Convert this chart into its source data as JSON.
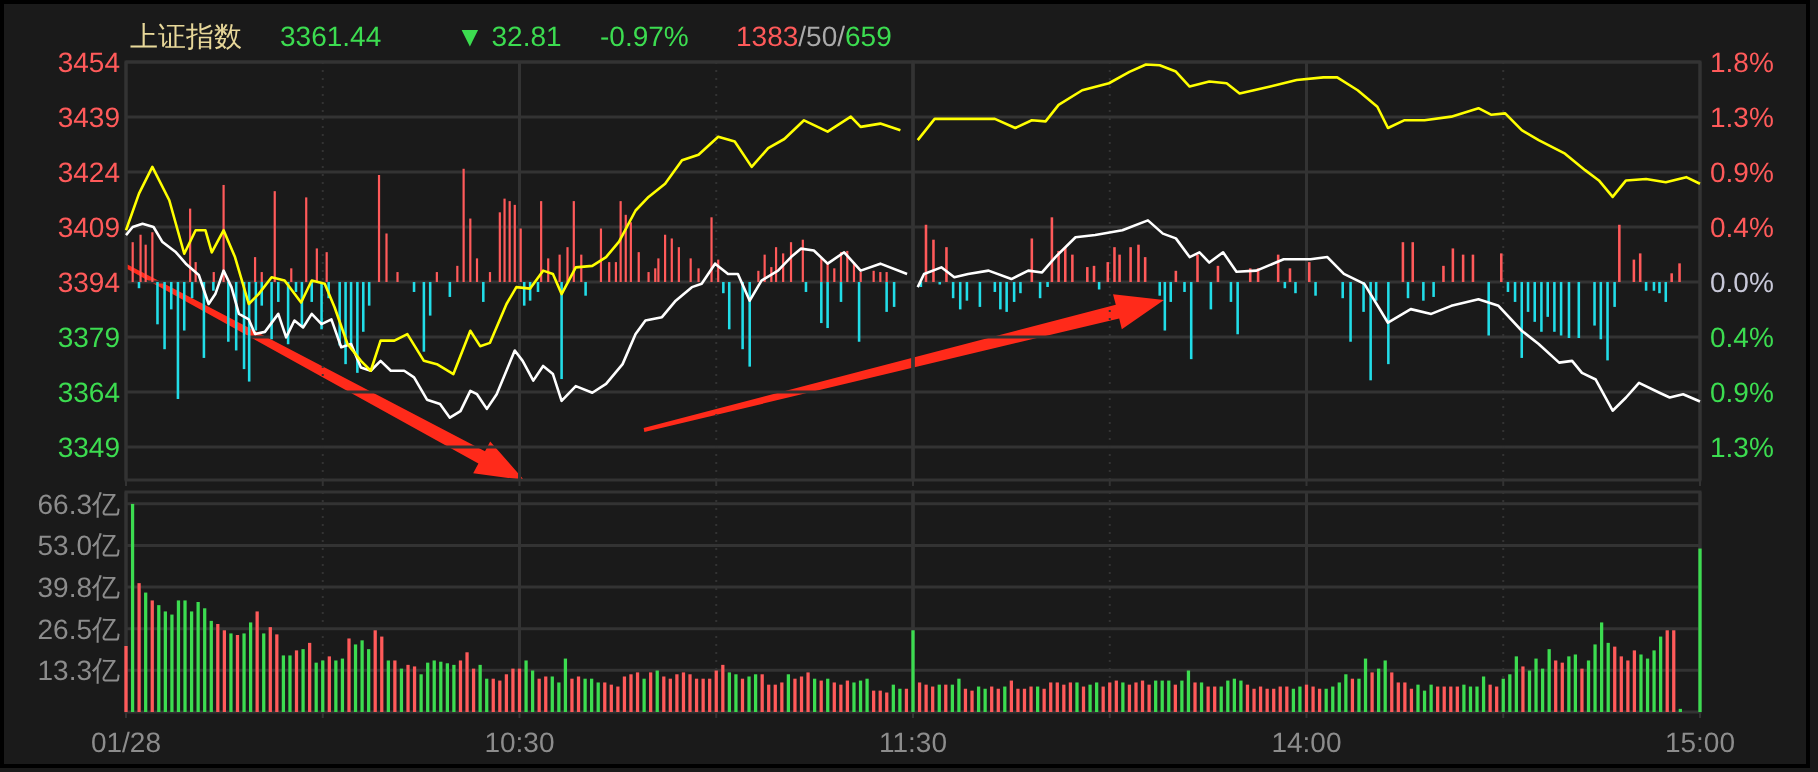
{
  "chart_data": [
    {
      "type": "line",
      "title": "上证指数",
      "annotations": [
        "3361.44",
        "▼ 32.81",
        "-0.97%",
        "1383/50/659"
      ],
      "xlim": [
        9.5,
        11.5
      ],
      "xticks": [
        9.5,
        {
          "value": 10,
          "label": null
        },
        10.5,
        {
          "value": 11,
          "label": null
        },
        11.5
      ],
      "ylim": [
        3340,
        3454
      ],
      "yticks": [
        3454,
        3439,
        3424,
        3409,
        3394,
        3379,
        3364,
        3349
      ],
      "y2lim": [
        -1.591,
        1.768
      ],
      "tick_labels": "y",
      "grid": true,
      "line_style": "solid",
      "series": [
        {
          "type": "bar",
          "axis": "y2",
          "color": "#ff5a5a",
          "x": [
            9.517,
            9.537,
            9.55,
            9.567,
            9.663,
            9.677,
            9.723,
            9.748,
            9.828,
            9.845,
            9.878,
            9.92,
            9.958,
            9.985,
            10.01,
            10.143,
            10.162,
            10.19,
            10.29,
            10.342,
            10.358,
            10.375,
            10.392,
            10.425,
            10.45,
            10.462,
            10.475,
            10.488,
            10.503,
            10.555,
            10.573,
            10.602,
            10.622,
            10.638,
            10.657,
            10.707,
            10.728,
            10.745,
            10.757,
            10.77,
            10.783,
            10.803,
            10.828,
            10.845,
            10.853,
            10.87,
            10.887,
            10.905,
            10.935,
            10.955,
            10.988,
            11.005,
            11.107,
            11.123,
            11.14,
            11.152,
            11.17,
            11.19,
            11.22,
            11.267,
            11.283,
            11.3,
            11.317,
            11.333,
            11.35,
            11.367,
            11.4,
            11.417,
            11.433
          ],
          "values": [
            0.32,
            0.38,
            0.3,
            0.4,
            0.59,
            0.16,
            0.08,
            0.78,
            0.2,
            0.08,
            0.73,
            0.11,
            0.68,
            0.27,
            0.24,
            0.86,
            0.39,
            0.08,
            0.08,
            0.13,
            0.91,
            0.51,
            0.19,
            0.08,
            0.56,
            0.67,
            0.65,
            0.62,
            0.43,
            0.65,
            0.19,
            0.22,
            0.28,
            0.65,
            0.22,
            0.43,
            0.16,
            0.16,
            0.65,
            0.54,
            0.48,
            0.24,
            0.08,
            0.11,
            0.19,
            0.38,
            0.35,
            0.28,
            0.19,
            0.11,
            0.52,
            0.18,
            0.09,
            0.22,
            0.12,
            0.28,
            0.23,
            0.32,
            0.34,
            0.19,
            0.16,
            0.11,
            0.24,
            0.25,
            0.16,
            0.08,
            0.09,
            0.08,
            0.08
          ]
        },
        {
          "type": "bar",
          "axis": "y2",
          "color": "#22dde8",
          "x": [
            9.533,
            9.58,
            9.598,
            9.615,
            9.632,
            9.648,
            9.668,
            9.698,
            9.722,
            9.76,
            9.78,
            9.8,
            9.813,
            9.83,
            9.845,
            9.87,
            9.887,
            9.912,
            9.932,
            9.947,
            9.972,
            9.997,
            10.015,
            10.043,
            10.058,
            10.072,
            10.088,
            10.103,
            10.118,
            10.232,
            10.257,
            10.273,
            10.323,
            10.408,
            10.512,
            10.527,
            10.547,
            10.607,
            10.668,
            11.018,
            11.033,
            11.067,
            11.085,
            11.228,
            11.267,
            11.283,
            11.317,
            11.363,
            11.433,
            11.452
          ],
          "values": [
            -0.05,
            -0.34,
            -0.54,
            -0.22,
            -0.94,
            -0.39,
            -0.13,
            -0.61,
            -0.07,
            -0.48,
            -0.55,
            -0.7,
            -0.8,
            -0.39,
            -0.19,
            -0.46,
            -0.16,
            -0.5,
            -0.08,
            -0.35,
            -0.16,
            -0.38,
            -0.13,
            -0.51,
            -0.66,
            -0.51,
            -0.73,
            -0.4,
            -0.19,
            -0.08,
            -0.56,
            -0.27,
            -0.12,
            -0.16,
            -0.19,
            -0.15,
            -0.08,
            -0.78,
            -0.11,
            -0.09,
            -0.38,
            -0.54,
            -0.68,
            -0.08,
            -0.33,
            -0.37,
            -0.16,
            -0.48,
            -0.24,
            -0.2
          ]
        },
        {
          "color": "#ffffff",
          "x": [
            9.5,
            9.517,
            9.542,
            9.57,
            9.592,
            9.627,
            9.652,
            9.685,
            9.71,
            9.727,
            9.748,
            9.768,
            9.787,
            9.812,
            9.828,
            9.853,
            9.887,
            9.907,
            9.928,
            9.95,
            9.972,
            9.997,
            10.022,
            10.047,
            10.072,
            10.097,
            10.122,
            10.147,
            10.173,
            10.207,
            10.232,
            10.265,
            10.298,
            10.323,
            10.35,
            10.375,
            10.392,
            10.417,
            10.442,
            10.488,
            10.508,
            10.535,
            10.56,
            10.585,
            10.607,
            10.643,
            10.685,
            10.72,
            10.762,
            10.795,
            10.82,
            10.862,
            10.897,
            10.938,
            10.963,
            10.997,
            11.03,
            11.055,
            11.085,
            11.115,
            11.157,
            11.19,
            11.215,
            11.248,
            11.283,
            11.325,
            11.367,
            11.417,
            11.485
          ],
          "values": [
            3406.8,
            3409.0,
            3409.9,
            3409.0,
            3405.0,
            3402.1,
            3399.0,
            3395.9,
            3388.0,
            3390.7,
            3397.1,
            3392.6,
            3385.3,
            3383.8,
            3379.8,
            3380.4,
            3385.3,
            3378.9,
            3383.5,
            3381.6,
            3385.3,
            3382.5,
            3383.8,
            3376.2,
            3377.1,
            3370.7,
            3369.8,
            3372.5,
            3369.8,
            3369.8,
            3368.0,
            3361.9,
            3360.7,
            3357.0,
            3358.8,
            3364.3,
            3363.4,
            3359.4,
            3363.4,
            3375.3,
            3372.5,
            3367.1,
            3371.1,
            3368.9,
            3361.6,
            3365.6,
            3363.8,
            3366.2,
            3371.6,
            3379.8,
            3383.5,
            3384.4,
            3388.9,
            3392.6,
            3393.5,
            3399.0,
            3396.2,
            3396.2,
            3388.9,
            3394.4,
            3397.1,
            3400.8,
            3403.1,
            3402.6,
            3399.0,
            3402.1,
            3397.1,
            3399.0,
            3396.2
          ]
        },
        {
          "color": "#ffff00",
          "x": [
            9.5,
            9.533,
            9.567,
            9.61,
            9.648,
            9.677,
            9.702,
            9.718,
            9.748,
            9.777,
            9.812,
            9.837,
            9.87,
            9.903,
            9.945,
            9.972,
            10.005,
            10.03,
            10.063,
            10.097,
            10.122,
            10.147,
            10.182,
            10.215,
            10.257,
            10.29,
            10.332,
            10.375,
            10.4,
            10.425,
            10.467,
            10.492,
            10.527,
            10.56,
            10.585,
            10.607,
            10.643,
            10.685,
            10.72,
            10.753,
            10.795,
            10.828,
            10.87,
            10.913,
            10.955,
            11.005,
            11.047,
            11.09,
            11.132,
            11.173,
            11.223,
            11.283,
            11.342,
            11.367,
            11.417,
            11.468
          ],
          "values": [
            3408.1,
            3418.1,
            3425.4,
            3416.3,
            3401.7,
            3408.1,
            3408.1,
            3402.1,
            3408.1,
            3400.8,
            3388.0,
            3390.7,
            3395.3,
            3394.4,
            3388.4,
            3394.4,
            3393.5,
            3387.1,
            3377.1,
            3372.5,
            3369.8,
            3378.0,
            3378.0,
            3379.8,
            3372.5,
            3371.6,
            3368.9,
            3380.7,
            3376.5,
            3377.4,
            3388.0,
            3392.6,
            3392.2,
            3397.1,
            3396.2,
            3390.7,
            3398.0,
            3398.4,
            3400.8,
            3405.0,
            3413.5,
            3417.2,
            3420.8,
            3427.2,
            3428.7,
            3433.6,
            3432.3,
            3425.4,
            3430.5,
            3433.0,
            3438.1,
            3435.0,
            3439.1,
            3436.3,
            3437.2,
            3435.4
          ]
        }
      ]
    },
    {
      "type": "line",
      "xlim": [
        13,
        15
      ],
      "xticks": [
        {
          "value": 13.5,
          "label": null
        },
        14,
        {
          "value": 14.5,
          "label": null
        },
        15
      ],
      "ylim": [
        3340,
        3454
      ],
      "y2lim": [
        -1.591,
        1.768
      ],
      "y2ticks": [
        {
          "value": 1.768,
          "label": "1.8%"
        },
        {
          "value": 1.326,
          "label": "1.3%"
        },
        {
          "value": 0.884,
          "label": "0.9%"
        },
        {
          "value": 0.442,
          "label": "0.4%"
        },
        {
          "value": 0,
          "label": "0.0%"
        },
        {
          "value": -0.442,
          "label": "0.4%"
        },
        {
          "value": -0.884,
          "label": "0.9%"
        },
        {
          "value": -1.326,
          "label": "1.3%"
        }
      ],
      "tick_labels": "y",
      "grid": true,
      "line_style": "solid",
      "series": [
        {
          "type": "bar",
          "axis": "y2",
          "color": "#ff5a5a",
          "x": [
            13.033,
            13.052,
            13.085,
            13.302,
            13.353,
            13.37,
            13.387,
            13.405,
            13.443,
            13.46,
            13.495,
            13.512,
            13.525,
            13.553,
            13.573,
            13.59,
            13.668,
            13.723,
            13.775,
            13.857,
            13.877,
            13.928,
            13.958,
            14.007,
            14.245,
            14.27,
            14.348,
            14.372,
            14.398,
            14.423,
            14.495,
            14.795,
            14.832,
            14.848,
            14.928,
            14.948
          ],
          "values": [
            0.46,
            0.34,
            0.28,
            0.35,
            0.52,
            0.25,
            0.28,
            0.22,
            0.12,
            0.13,
            0.16,
            0.28,
            0.22,
            0.28,
            0.3,
            0.2,
            0.09,
            0.22,
            0.13,
            0.11,
            0.11,
            0.22,
            0.11,
            0.16,
            0.32,
            0.32,
            0.13,
            0.27,
            0.22,
            0.22,
            0.23,
            0.46,
            0.18,
            0.23,
            0.07,
            0.15
          ]
        },
        {
          "type": "bar",
          "axis": "y2",
          "color": "#22dde8",
          "x": [
            13.02,
            13.068,
            13.102,
            13.12,
            13.137,
            13.17,
            13.208,
            13.222,
            13.238,
            13.257,
            13.273,
            13.323,
            13.342,
            13.473,
            13.627,
            13.64,
            13.655,
            13.69,
            13.707,
            13.757,
            13.808,
            13.825,
            13.945,
            13.972,
            14.023,
            14.092,
            14.112,
            14.145,
            14.163,
            14.177,
            14.208,
            14.258,
            14.297,
            14.323,
            14.463,
            14.512,
            14.53,
            14.547,
            14.563,
            14.58,
            14.597,
            14.613,
            14.63,
            14.647,
            14.667,
            14.692,
            14.732,
            14.748,
            14.765,
            14.783,
            14.863,
            14.883,
            14.897,
            14.913
          ],
          "values": [
            -0.04,
            -0.02,
            -0.13,
            -0.22,
            -0.15,
            -0.2,
            -0.08,
            -0.22,
            -0.24,
            -0.16,
            -0.09,
            -0.13,
            -0.04,
            -0.06,
            -0.11,
            -0.39,
            -0.16,
            -0.08,
            -0.62,
            -0.22,
            -0.16,
            -0.42,
            -0.05,
            -0.09,
            -0.11,
            -0.13,
            -0.48,
            -0.24,
            -0.79,
            -0.15,
            -0.66,
            -0.13,
            -0.15,
            -0.12,
            -0.43,
            -0.08,
            -0.16,
            -0.61,
            -0.24,
            -0.32,
            -0.4,
            -0.28,
            -0.4,
            -0.43,
            -0.45,
            -0.45,
            -0.35,
            -0.46,
            -0.63,
            -0.2,
            -0.07,
            -0.07,
            -0.09,
            -0.16
          ]
        },
        {
          "color": "#ffffff",
          "x": [
            13.012,
            13.028,
            13.072,
            13.105,
            13.14,
            13.192,
            13.25,
            13.293,
            13.328,
            13.362,
            13.413,
            13.463,
            13.532,
            13.597,
            13.635,
            13.668,
            13.703,
            13.728,
            13.753,
            13.788,
            13.822,
            13.873,
            13.942,
            14.01,
            14.053,
            14.095,
            14.147,
            14.207,
            14.265,
            14.317,
            14.368,
            14.437,
            14.488,
            14.547,
            14.59,
            14.642,
            14.675,
            14.7,
            14.735,
            14.778,
            14.812,
            14.845,
            14.897,
            14.923,
            14.957,
            15
          ],
          "values": [
            3392.6,
            3396.2,
            3398.0,
            3395.3,
            3396.2,
            3397.1,
            3394.8,
            3397.1,
            3396.6,
            3400.8,
            3406.2,
            3406.8,
            3408.1,
            3410.8,
            3407.2,
            3405.9,
            3400.8,
            3402.1,
            3399.3,
            3402.1,
            3396.8,
            3397.1,
            3400.2,
            3400.2,
            3400.8,
            3396.2,
            3393.5,
            3382.9,
            3386.6,
            3385.3,
            3387.5,
            3389.3,
            3387.5,
            3380.7,
            3377.1,
            3372.0,
            3372.5,
            3369.2,
            3367.4,
            3358.9,
            3362.5,
            3366.5,
            3363.8,
            3362.5,
            3363.4,
            3361.4
          ]
        },
        {
          "color": "#ffff00",
          "x": [
            13.012,
            13.055,
            13.123,
            13.208,
            13.26,
            13.302,
            13.337,
            13.37,
            13.43,
            13.498,
            13.55,
            13.592,
            13.627,
            13.668,
            13.703,
            13.753,
            13.797,
            13.83,
            13.908,
            13.975,
            14.043,
            14.078,
            14.13,
            14.18,
            14.207,
            14.248,
            14.3,
            14.368,
            14.437,
            14.47,
            14.505,
            14.547,
            14.59,
            14.657,
            14.708,
            14.743,
            14.778,
            14.812,
            14.863,
            14.913,
            14.965,
            15
          ],
          "values": [
            3432.7,
            3438.5,
            3438.5,
            3438.5,
            3436.0,
            3438.1,
            3437.8,
            3442.3,
            3446.3,
            3448.2,
            3451.3,
            3453.3,
            3453.1,
            3451.4,
            3447.3,
            3448.7,
            3448.2,
            3445.4,
            3447.3,
            3449.1,
            3449.8,
            3449.8,
            3446.3,
            3441.8,
            3436.0,
            3438.1,
            3438.1,
            3439.1,
            3441.4,
            3439.6,
            3440.0,
            3435.4,
            3432.7,
            3429.0,
            3424.5,
            3421.7,
            3417.2,
            3421.7,
            3422.1,
            3421.2,
            3422.6,
            3420.8
          ]
        }
      ]
    },
    {
      "type": "bar",
      "xlim": [
        9.5,
        11.5
      ],
      "xticks": [
        {
          "value": 9.5,
          "label": "01/28"
        },
        {
          "value": 10,
          "label": null
        },
        {
          "value": 10.5,
          "label": "10:30"
        },
        {
          "value": 11,
          "label": null
        },
        {
          "value": 11.5,
          "label": "11:30"
        }
      ],
      "ylim": [
        0,
        70
      ],
      "yticks": [
        {
          "value": 66.3,
          "label": "66.3亿"
        },
        {
          "value": 53.0,
          "label": "53.0亿"
        },
        {
          "value": 39.8,
          "label": "39.8亿"
        },
        {
          "value": 26.5,
          "label": "26.5亿"
        },
        {
          "value": 13.3,
          "label": "13.3亿"
        }
      ],
      "grid": true,
      "x": [
        9.5,
        9.5167,
        9.5333,
        9.55,
        9.5667,
        9.5833,
        9.6,
        9.6167,
        9.6333,
        9.65,
        9.6667,
        9.6833,
        9.7,
        9.7167,
        9.7333,
        9.75,
        9.7667,
        9.7833,
        9.8,
        9.8167,
        9.8333,
        9.85,
        9.8667,
        9.8833,
        9.9,
        9.9167,
        9.9333,
        9.95,
        9.9667,
        9.9833,
        10,
        10.0167,
        10.0333,
        10.05,
        10.0667,
        10.0833,
        10.1,
        10.1167,
        10.1333,
        10.15,
        10.1667,
        10.1833,
        10.2,
        10.2167,
        10.2333,
        10.25,
        10.2667,
        10.2833,
        10.3,
        10.3167,
        10.3333,
        10.35,
        10.3667,
        10.3833,
        10.4,
        10.4167,
        10.4333,
        10.45,
        10.4667,
        10.4833,
        10.5,
        10.5167,
        10.5333,
        10.55,
        10.5667,
        10.5833,
        10.6,
        10.6167,
        10.6333,
        10.65,
        10.6667,
        10.6833,
        10.7,
        10.7167,
        10.7333,
        10.75,
        10.7667,
        10.7833,
        10.8,
        10.8167,
        10.8333,
        10.85,
        10.8667,
        10.8833,
        10.9,
        10.9167,
        10.9333,
        10.95,
        10.9667,
        10.9833,
        11,
        11.0167,
        11.0333,
        11.05,
        11.0667,
        11.0833,
        11.1,
        11.1167,
        11.1333,
        11.15,
        11.1667,
        11.1833,
        11.2,
        11.2167,
        11.2333,
        11.25,
        11.2667,
        11.2833,
        11.3,
        11.3167,
        11.3333,
        11.35,
        11.3667,
        11.3833,
        11.4,
        11.4167,
        11.4333,
        11.45,
        11.4667,
        11.4833,
        11.5
      ],
      "values": [
        21,
        66.2,
        41,
        38,
        35.5,
        34,
        32,
        31,
        35.5,
        35.5,
        32,
        35,
        33,
        29,
        28,
        26,
        25,
        24.5,
        25,
        28.5,
        32,
        25,
        27,
        24.7,
        18,
        18,
        19.6,
        20,
        22,
        15.7,
        16.4,
        17.7,
        16.4,
        17,
        23.4,
        21.5,
        22.8,
        20,
        26,
        24,
        16.4,
        16.4,
        13.8,
        15,
        14.5,
        12,
        15.7,
        16.4,
        16,
        15.5,
        15,
        16.4,
        19,
        13.8,
        15,
        10.6,
        10.6,
        10,
        12,
        13.8,
        13.8,
        16.4,
        13.2,
        10.6,
        11.3,
        11.3,
        9.4,
        17,
        10.6,
        11.3,
        10.6,
        10.6,
        9.4,
        9.4,
        8.7,
        8.1,
        11.3,
        12,
        12.6,
        10.6,
        12.6,
        13.2,
        11.3,
        10.6,
        12,
        12.6,
        12,
        10.6,
        10.6,
        10.6,
        13.2,
        15,
        12.6,
        12,
        10.6,
        11.3,
        12,
        12,
        8.7,
        8.7,
        9.4,
        12,
        10.6,
        11.3,
        12.6,
        10.6,
        10,
        10.6,
        9.4,
        8.7,
        10,
        9.4,
        10,
        10.6,
        6.8,
        6.8,
        6.2,
        8.7,
        7.4,
        7.4,
        26
      ],
      "colors": [
        "#ff5a5a",
        "#3cdc50",
        "#ff5a5a",
        "#3cdc50",
        "#ff5a5a",
        "#3cdc50",
        "#3cdc50",
        "#3cdc50",
        "#3cdc50",
        "#3cdc50",
        "#3cdc50",
        "#3cdc50",
        "#3cdc50",
        "#3cdc50",
        "#ff5a5a",
        "#ff5a5a",
        "#3cdc50",
        "#ff5a5a",
        "#3cdc50",
        "#3cdc50",
        "#ff5a5a",
        "#3cdc50",
        "#ff5a5a",
        "#ff5a5a",
        "#3cdc50",
        "#3cdc50",
        "#ff5a5a",
        "#3cdc50",
        "#ff5a5a",
        "#3cdc50",
        "#3cdc50",
        "#ff5a5a",
        "#3cdc50",
        "#3cdc50",
        "#ff5a5a",
        "#3cdc50",
        "#3cdc50",
        "#3cdc50",
        "#ff5a5a",
        "#ff5a5a",
        "#3cdc50",
        "#ff5a5a",
        "#3cdc50",
        "#ff5a5a",
        "#ff5a5a",
        "#3cdc50",
        "#3cdc50",
        "#3cdc50",
        "#3cdc50",
        "#3cdc50",
        "#3cdc50",
        "#ff5a5a",
        "#ff5a5a",
        "#ff5a5a",
        "#3cdc50",
        "#3cdc50",
        "#ff5a5a",
        "#ff5a5a",
        "#ff5a5a",
        "#ff5a5a",
        "#ff5a5a",
        "#3cdc50",
        "#3cdc50",
        "#ff5a5a",
        "#ff5a5a",
        "#3cdc50",
        "#3cdc50",
        "#3cdc50",
        "#ff5a5a",
        "#ff5a5a",
        "#3cdc50",
        "#3cdc50",
        "#3cdc50",
        "#ff5a5a",
        "#ff5a5a",
        "#ff5a5a",
        "#ff5a5a",
        "#ff5a5a",
        "#ff5a5a",
        "#3cdc50",
        "#ff5a5a",
        "#3cdc50",
        "#ff5a5a",
        "#ff5a5a",
        "#ff5a5a",
        "#ff5a5a",
        "#ff5a5a",
        "#ff5a5a",
        "#ff5a5a",
        "#ff5a5a",
        "#ff5a5a",
        "#ff5a5a",
        "#3cdc50",
        "#3cdc50",
        "#ff5a5a",
        "#3cdc50",
        "#3cdc50",
        "#ff5a5a",
        "#ff5a5a",
        "#ff5a5a",
        "#ff5a5a",
        "#3cdc50",
        "#ff5a5a",
        "#ff5a5a",
        "#ff5a5a",
        "#3cdc50",
        "#ff5a5a",
        "#3cdc50",
        "#ff5a5a",
        "#ff5a5a",
        "#ff5a5a",
        "#3cdc50",
        "#3cdc50",
        "#3cdc50",
        "#ff5a5a",
        "#ff5a5a",
        "#ff5a5a",
        "#3cdc50",
        "#3cdc50",
        "#ff5a5a",
        "#3cdc50"
      ]
    },
    {
      "type": "bar",
      "xlim": [
        13,
        15
      ],
      "xticks": [
        {
          "value": 13.5,
          "label": null
        },
        {
          "value": 14,
          "label": "14:00"
        },
        {
          "value": 14.5,
          "label": null
        },
        {
          "value": 15,
          "label": "15:00"
        }
      ],
      "ylim": [
        0,
        70
      ],
      "yticks": [
        66.3,
        53.0,
        39.8,
        26.5,
        13.3
      ],
      "tick_labels": "x",
      "grid": true,
      "x": [
        13.0167,
        13.0333,
        13.05,
        13.0667,
        13.0833,
        13.1,
        13.1167,
        13.1333,
        13.15,
        13.1667,
        13.1833,
        13.2,
        13.2167,
        13.2333,
        13.25,
        13.2667,
        13.2833,
        13.3,
        13.3167,
        13.3333,
        13.35,
        13.3667,
        13.3833,
        13.4,
        13.4167,
        13.4333,
        13.45,
        13.4667,
        13.4833,
        13.5,
        13.5167,
        13.5333,
        13.55,
        13.5667,
        13.5833,
        13.6,
        13.6167,
        13.6333,
        13.65,
        13.6667,
        13.6833,
        13.7,
        13.7167,
        13.7333,
        13.75,
        13.7667,
        13.7833,
        13.8,
        13.8167,
        13.8333,
        13.85,
        13.8667,
        13.8833,
        13.9,
        13.9167,
        13.9333,
        13.95,
        13.9667,
        13.9833,
        14,
        14.0167,
        14.0333,
        14.05,
        14.0667,
        14.0833,
        14.1,
        14.1167,
        14.1333,
        14.15,
        14.1667,
        14.1833,
        14.2,
        14.2167,
        14.2333,
        14.25,
        14.2667,
        14.2833,
        14.3,
        14.3167,
        14.3333,
        14.35,
        14.3667,
        14.3833,
        14.4,
        14.4167,
        14.4333,
        14.45,
        14.4667,
        14.4833,
        14.5,
        14.5167,
        14.5333,
        14.55,
        14.5667,
        14.5833,
        14.6,
        14.6167,
        14.6333,
        14.65,
        14.6667,
        14.6833,
        14.7,
        14.7167,
        14.7333,
        14.75,
        14.7667,
        14.7833,
        14.8,
        14.8167,
        14.8333,
        14.85,
        14.8667,
        14.8833,
        14.9,
        14.9167,
        14.9333,
        14.95,
        14.9667,
        14.9833,
        15
      ],
      "values": [
        9.4,
        8.7,
        8.1,
        8.7,
        8.7,
        8.7,
        10.6,
        7.4,
        6.8,
        8.1,
        7.4,
        8.1,
        7.4,
        8.1,
        10,
        7.4,
        7.4,
        8.1,
        8.1,
        7.4,
        9.4,
        9.4,
        8.7,
        9.4,
        9.4,
        8.1,
        8.7,
        9.4,
        8.1,
        9.4,
        10,
        9.4,
        8.7,
        9.4,
        10,
        8.7,
        10,
        10,
        10,
        8.7,
        10,
        13.2,
        9.4,
        9.4,
        8.1,
        8.1,
        8.1,
        10,
        10.6,
        10,
        8.7,
        7.4,
        8.1,
        7.4,
        7.4,
        8.1,
        8.1,
        7.4,
        8.1,
        8.7,
        8.1,
        7.4,
        7.4,
        8.1,
        9.4,
        12,
        10.6,
        10.6,
        17,
        12.6,
        13.8,
        16.4,
        12.6,
        9.4,
        9.4,
        7.4,
        8.7,
        6.8,
        8.7,
        8.1,
        8.1,
        8.1,
        8.1,
        8.7,
        8.1,
        8.1,
        11.3,
        8.7,
        8.1,
        10.6,
        12,
        17.7,
        14.5,
        13.2,
        17,
        13.8,
        20,
        16.4,
        15.7,
        17.7,
        18.3,
        13.8,
        16.4,
        21.5,
        28.5,
        22,
        20.8,
        17.7,
        16.4,
        19.6,
        18.3,
        17,
        19.6,
        24,
        26,
        26,
        1,
        null,
        null,
        52
      ],
      "colors": [
        "#ff5a5a",
        "#ff5a5a",
        "#ff5a5a",
        "#3cdc50",
        "#ff5a5a",
        "#3cdc50",
        "#3cdc50",
        "#ff5a5a",
        "#ff5a5a",
        "#3cdc50",
        "#3cdc50",
        "#ff5a5a",
        "#ff5a5a",
        "#3cdc50",
        "#ff5a5a",
        "#ff5a5a",
        "#ff5a5a",
        "#ff5a5a",
        "#3cdc50",
        "#ff5a5a",
        "#ff5a5a",
        "#ff5a5a",
        "#ff5a5a",
        "#ff5a5a",
        "#3cdc50",
        "#ff5a5a",
        "#3cdc50",
        "#3cdc50",
        "#ff5a5a",
        "#ff5a5a",
        "#ff5a5a",
        "#3cdc50",
        "#ff5a5a",
        "#ff5a5a",
        "#ff5a5a",
        "#ff5a5a",
        "#3cdc50",
        "#3cdc50",
        "#3cdc50",
        "#ff5a5a",
        "#3cdc50",
        "#3cdc50",
        "#ff5a5a",
        "#3cdc50",
        "#ff5a5a",
        "#ff5a5a",
        "#3cdc50",
        "#3cdc50",
        "#3cdc50",
        "#3cdc50",
        "#ff5a5a",
        "#ff5a5a",
        "#ff5a5a",
        "#ff5a5a",
        "#ff5a5a",
        "#ff5a5a",
        "#ff5a5a",
        "#3cdc50",
        "#3cdc50",
        "#ff5a5a",
        "#ff5a5a",
        "#ff5a5a",
        "#3cdc50",
        "#3cdc50",
        "#3cdc50",
        "#3cdc50",
        "#ff5a5a",
        "#3cdc50",
        "#3cdc50",
        "#ff5a5a",
        "#3cdc50",
        "#3cdc50",
        "#ff5a5a",
        "#ff5a5a",
        "#ff5a5a",
        "#ff5a5a",
        "#3cdc50",
        "#3cdc50",
        "#3cdc50",
        "#ff5a5a",
        "#ff5a5a",
        "#ff5a5a",
        "#ff5a5a",
        "#3cdc50",
        "#3cdc50",
        "#3cdc50",
        "#3cdc50",
        "#ff5a5a",
        "#ff5a5a",
        "#3cdc50",
        "#3cdc50",
        "#3cdc50",
        "#ff5a5a",
        "#3cdc50",
        "#3cdc50",
        "#3cdc50",
        "#3cdc50",
        "#ff5a5a",
        "#ff5a5a",
        "#3cdc50",
        "#3cdc50",
        "#ff5a5a",
        "#3cdc50",
        "#3cdc50",
        "#3cdc50",
        "#3cdc50",
        "#ff5a5a",
        "#ff5a5a",
        "#ff5a5a",
        "#ff5a5a",
        "#3cdc50",
        "#3cdc50",
        "#3cdc50",
        "#3cdc50",
        "#ff5a5a",
        "#ff5a5a",
        "#3cdc50",
        "#3cdc50",
        "#3cdc50",
        "#3cdc50"
      ]
    }
  ]
}
